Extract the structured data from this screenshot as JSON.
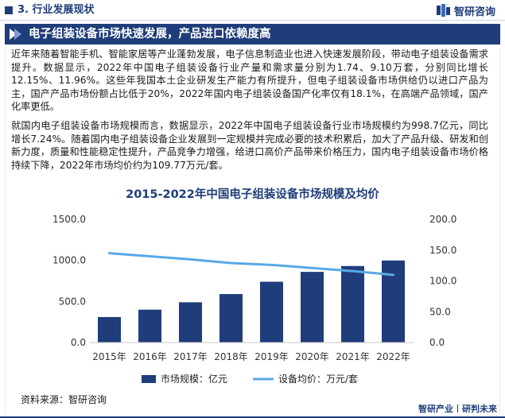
{
  "header": {
    "section_label": "3. 行业发展现状",
    "logo_text": "智研咨询"
  },
  "title_band": {
    "title": "电子组装设备市场快速发展，产品进口依赖度高"
  },
  "body": {
    "paragraph1": "近年来随着智能手机、智能家居等产业蓬勃发展，电子信息制造业也进入快速发展阶段，带动电子组装设备需求提升。数据显示，2022年中国电子组装设备行业产量和需求量分别为1.74、9.10万套，分别同比增长12.15%、11.96%。这些年我国本土企业研发生产能力有所提升，但电子组装设备市场供给仍以进口产品为主，国产产品市场份额占比低于20%，2022年国内电子组装设备国产化率仅有18.1%，在高端产品领域，国产化率更低。",
    "paragraph2": "就国内电子组装设备市场规模而言，数据显示，2022年中国电子组装设备行业市场规模约为998.7亿元，同比增长7.24%。随着国内电子组装设备企业发展到一定规模并完成必要的技术积累后，加大了产品升级、研发和创新力度，质量和性能稳定性提升，产品竞争力增强，给进口高价产品带来价格压力，国内电子组装设备市场价格持续下降，2022年市场均价约为109.77万元/套。"
  },
  "footer": {
    "source": "资料来源：智研咨询",
    "brand_left": "智研产业",
    "brand_right": "研判未来"
  },
  "colors": {
    "brand": "#1f3d7a",
    "bar": "#1f3d7a",
    "line": "#5aa8e6"
  },
  "chart_data": {
    "type": "bar",
    "title": "2015-2022年中国电子组装设备市场规模及均价",
    "categories": [
      "2015年",
      "2016年",
      "2017年",
      "2018年",
      "2019年",
      "2020年",
      "2021年",
      "2022年"
    ],
    "series": [
      {
        "name": "市场规模：亿元",
        "type": "bar",
        "axis": "left",
        "values": [
          310,
          400,
          490,
          590,
          740,
          860,
          931.3,
          998.7
        ]
      },
      {
        "name": "设备均价：万元/套",
        "type": "line",
        "axis": "right",
        "values": [
          145,
          140,
          135,
          129,
          126,
          121,
          116,
          109.77
        ]
      }
    ],
    "left_axis": {
      "min": 0,
      "max": 1500,
      "ticks": [
        "0.0",
        "500.0",
        "1000.0",
        "1500.0"
      ]
    },
    "right_axis": {
      "min": 0,
      "max": 200,
      "ticks": [
        "0.0",
        "50.0",
        "100.0",
        "150.0",
        "200.0"
      ]
    },
    "legend_position": "bottom",
    "grid": false
  }
}
